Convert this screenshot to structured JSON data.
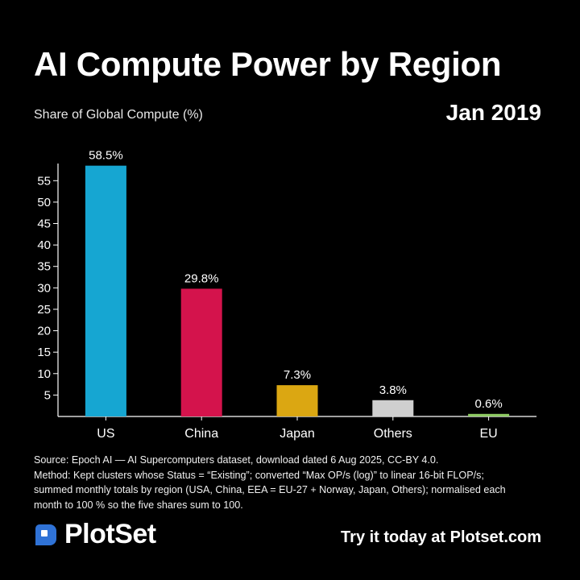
{
  "header": {
    "title": "AI Compute Power by Region",
    "subtitle": "Share of Global Compute (%)",
    "date": "Jan 2019"
  },
  "chart_data": {
    "type": "bar",
    "categories": [
      "US",
      "China",
      "Japan",
      "Others",
      "EU"
    ],
    "values": [
      58.5,
      29.8,
      7.3,
      3.8,
      0.6
    ],
    "value_labels": [
      "58.5%",
      "29.8%",
      "7.3%",
      "3.8%",
      "0.6%"
    ],
    "colors": [
      "#16a6d2",
      "#d4134c",
      "#dba712",
      "#cfcfcf",
      "#8ecb63"
    ],
    "ylabel": "Share of Global Compute (%)",
    "yticks": [
      5,
      10,
      15,
      20,
      25,
      30,
      35,
      40,
      45,
      50,
      55
    ],
    "ylim": [
      0,
      59
    ],
    "grid": false
  },
  "footnote": {
    "line1": "Source: Epoch AI — AI Supercomputers dataset, download dated 6 Aug 2025, CC-BY 4.0.",
    "line2": "Method: Kept clusters whose Status = “Existing”; converted “Max OP/s (log)” to linear 16-bit FLOP/s;",
    "line3": "summed monthly totals by region (USA, China, EEA = EU-27 + Norway, Japan, Others); normalised each",
    "line4": "month to 100 % so the five shares sum to 100."
  },
  "brand": {
    "name": "PlotSet",
    "cta": "Try it today at Plotset.com"
  }
}
